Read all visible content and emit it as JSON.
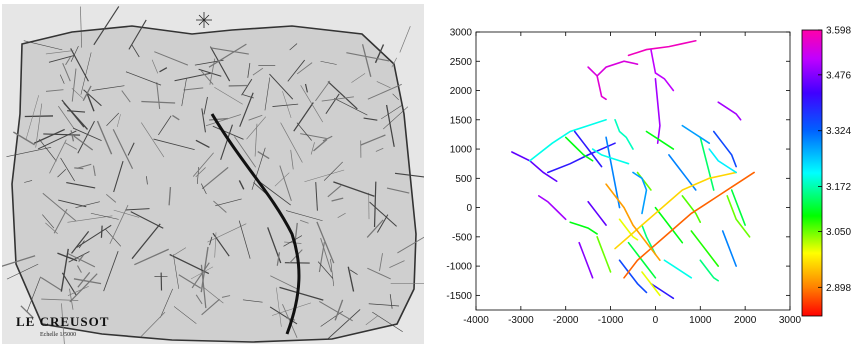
{
  "map": {
    "title": "LE CREUSOT",
    "scale_text": "Echelle 1/5000"
  },
  "chart_data": {
    "type": "line",
    "title": "",
    "xlabel": "",
    "ylabel": "",
    "xlim": [
      -4000,
      3000
    ],
    "ylim": [
      -1750,
      3000
    ],
    "xticks": [
      -4000,
      -3000,
      -2000,
      -1000,
      0,
      1000,
      2000,
      3000
    ],
    "yticks": [
      -1500,
      -1000,
      -500,
      0,
      500,
      1000,
      1500,
      2000,
      2500,
      3000
    ],
    "colorbar": {
      "range": [
        2.82,
        3.598
      ],
      "ticks": [
        2.898,
        3.05,
        3.172,
        3.324,
        3.476,
        3.598
      ],
      "tick_labels": [
        "2.898",
        "3.050",
        "3.172",
        "3.324",
        "3.476",
        "3.598"
      ]
    },
    "grid": false,
    "legend": "none",
    "segments": [
      {
        "x": [
          -1500,
          -1300,
          -1100,
          -700,
          -400
        ],
        "y": [
          2400,
          2250,
          2400,
          2500,
          2450
        ],
        "v": 3.55
      },
      {
        "x": [
          -1300,
          -1200,
          -1100
        ],
        "y": [
          2250,
          1900,
          1850
        ],
        "v": 3.56
      },
      {
        "x": [
          -600,
          -200,
          300,
          600,
          900
        ],
        "y": [
          2600,
          2700,
          2750,
          2800,
          2850
        ],
        "v": 3.58
      },
      {
        "x": [
          -100,
          0,
          200,
          400
        ],
        "y": [
          2700,
          2300,
          2200,
          2000
        ],
        "v": 3.52
      },
      {
        "x": [
          0,
          50,
          100,
          50
        ],
        "y": [
          2200,
          1800,
          1400,
          1100
        ],
        "v": 3.5
      },
      {
        "x": [
          -3200,
          -2800,
          -2500,
          -2200
        ],
        "y": [
          950,
          800,
          600,
          450
        ],
        "v": 3.45
      },
      {
        "x": [
          -2800,
          -2300,
          -1900,
          -1500,
          -1100
        ],
        "y": [
          800,
          1100,
          1300,
          1400,
          1500
        ],
        "v": 3.2
      },
      {
        "x": [
          -2400,
          -1900,
          -1500,
          -1200,
          -900
        ],
        "y": [
          600,
          750,
          900,
          1000,
          1100
        ],
        "v": 3.4
      },
      {
        "x": [
          -2600,
          -2400,
          -2200,
          -2000
        ],
        "y": [
          200,
          100,
          -50,
          -200
        ],
        "v": 3.5
      },
      {
        "x": [
          -1900,
          -1700,
          -1500,
          -1300
        ],
        "y": [
          -250,
          -300,
          -350,
          -450
        ],
        "v": 3.1
      },
      {
        "x": [
          -1500,
          -1300,
          -1100
        ],
        "y": [
          100,
          -100,
          -300
        ],
        "v": 3.45
      },
      {
        "x": [
          -1100,
          -1000,
          -900,
          -800
        ],
        "y": [
          1200,
          800,
          400,
          0
        ],
        "v": 3.3
      },
      {
        "x": [
          -900,
          -800,
          -650,
          -500
        ],
        "y": [
          1500,
          1300,
          1200,
          1000
        ],
        "v": 3.18
      },
      {
        "x": [
          -800,
          -600,
          -400,
          -200
        ],
        "y": [
          -900,
          -1100,
          -1300,
          -1450
        ],
        "v": 3.35
      },
      {
        "x": [
          -600,
          -400,
          -200,
          0
        ],
        "y": [
          -600,
          -800,
          -1000,
          -1200
        ],
        "v": 3.12
      },
      {
        "x": [
          -1700,
          -1600,
          -1500,
          -1400
        ],
        "y": [
          -600,
          -800,
          -1000,
          -1200
        ],
        "v": 3.48
      },
      {
        "x": [
          -1300,
          -1200,
          -1100,
          -1000
        ],
        "y": [
          -500,
          -700,
          -900,
          -1100
        ],
        "v": 3.05
      },
      {
        "x": [
          -300,
          -200,
          -100,
          0
        ],
        "y": [
          -300,
          -500,
          -650,
          -800
        ],
        "v": 3.15
      },
      {
        "x": [
          0,
          200,
          400,
          600
        ],
        "y": [
          0,
          -200,
          -400,
          -600
        ],
        "v": 3.1
      },
      {
        "x": [
          300,
          500,
          700,
          900
        ],
        "y": [
          900,
          700,
          500,
          300
        ],
        "v": 3.3
      },
      {
        "x": [
          600,
          750,
          900,
          1000
        ],
        "y": [
          200,
          50,
          -100,
          -250
        ],
        "v": 3.06
      },
      {
        "x": [
          800,
          1000,
          1200,
          1400
        ],
        "y": [
          -400,
          -600,
          -800,
          -1000
        ],
        "v": 3.08
      },
      {
        "x": [
          1000,
          1100,
          1200,
          1300
        ],
        "y": [
          1200,
          900,
          600,
          300
        ],
        "v": 3.14
      },
      {
        "x": [
          1300,
          1500,
          1700,
          1800
        ],
        "y": [
          1300,
          1100,
          900,
          700
        ],
        "v": 3.35
      },
      {
        "x": [
          1400,
          1600,
          1800,
          1900
        ],
        "y": [
          1800,
          1700,
          1600,
          1500
        ],
        "v": 3.5
      },
      {
        "x": [
          1700,
          1800,
          1900,
          2000
        ],
        "y": [
          300,
          100,
          -100,
          -300
        ],
        "v": 3.12
      },
      {
        "x": [
          1500,
          1600,
          1700,
          1800
        ],
        "y": [
          -400,
          -600,
          -800,
          -1000
        ],
        "v": 3.3
      },
      {
        "x": [
          200,
          400,
          600,
          800
        ],
        "y": [
          -900,
          -1000,
          -1100,
          -1200
        ],
        "v": 3.2
      },
      {
        "x": [
          -100,
          100,
          300,
          400
        ],
        "y": [
          -1300,
          -1400,
          -1500,
          -1550
        ],
        "v": 3.4
      },
      {
        "x": [
          -400,
          -300,
          -200,
          -100
        ],
        "y": [
          600,
          500,
          400,
          300
        ],
        "v": 3.05
      },
      {
        "x": [
          -200,
          0,
          200,
          400
        ],
        "y": [
          1300,
          1200,
          1100,
          1000
        ],
        "v": 3.1
      },
      {
        "x": [
          600,
          800,
          1000,
          1200
        ],
        "y": [
          1400,
          1300,
          1200,
          1100
        ],
        "v": 3.28
      },
      {
        "x": [
          -1800,
          -1600,
          -1400,
          -1200
        ],
        "y": [
          1300,
          1100,
          900,
          700
        ],
        "v": 3.4
      },
      {
        "x": [
          -800,
          -600,
          -500,
          -400
        ],
        "y": [
          -200,
          -400,
          -500,
          -550
        ],
        "v": 3.0
      },
      {
        "x": [
          -700,
          -400,
          -100,
          200,
          500,
          800,
          1100,
          1400,
          1700,
          2000,
          2200
        ],
        "y": [
          -1200,
          -900,
          -700,
          -500,
          -300,
          -100,
          50,
          200,
          350,
          500,
          600
        ],
        "v": 2.88
      },
      {
        "x": [
          -900,
          -600,
          -300,
          0,
          300,
          600,
          900,
          1200,
          1500,
          1800
        ],
        "y": [
          -700,
          -500,
          -300,
          -100,
          100,
          300,
          400,
          500,
          550,
          600
        ],
        "v": 2.96
      },
      {
        "x": [
          -1100,
          -900,
          -700,
          -500,
          -300,
          -100,
          100
        ],
        "y": [
          400,
          200,
          0,
          -300,
          -500,
          -700,
          -900
        ],
        "v": 2.92
      },
      {
        "x": [
          -500,
          -300,
          -200,
          -250,
          -300
        ],
        "y": [
          600,
          500,
          300,
          100,
          -100
        ],
        "v": 3.28
      },
      {
        "x": [
          -1400,
          -1200,
          -1000,
          -800,
          -600
        ],
        "y": [
          1000,
          900,
          850,
          800,
          750
        ],
        "v": 3.2
      },
      {
        "x": [
          -300,
          -200,
          -100,
          0,
          100
        ],
        "y": [
          -1100,
          -1200,
          -1300,
          -1400,
          -1500
        ],
        "v": 3.0
      },
      {
        "x": [
          1000,
          1100,
          1200,
          1300,
          1400
        ],
        "y": [
          -900,
          -1000,
          -1100,
          -1200,
          -1250
        ],
        "v": 3.15
      },
      {
        "x": [
          1600,
          1700,
          1800,
          2000,
          2100
        ],
        "y": [
          200,
          0,
          -200,
          -400,
          -500
        ],
        "v": 3.05
      },
      {
        "x": [
          1200,
          1300,
          1400,
          1600,
          1800
        ],
        "y": [
          1000,
          900,
          800,
          700,
          600
        ],
        "v": 3.22
      },
      {
        "x": [
          -2000,
          -1800,
          -1600,
          -1400
        ],
        "y": [
          1200,
          1050,
          900,
          800
        ],
        "v": 3.1
      }
    ]
  }
}
